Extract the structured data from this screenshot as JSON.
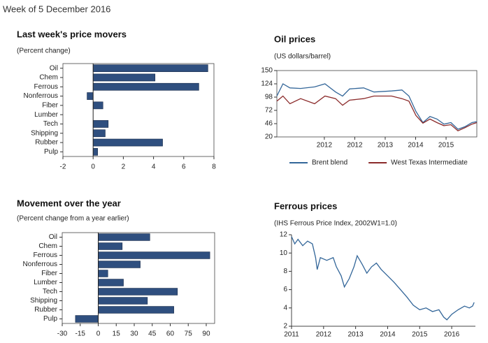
{
  "header": "Week of 5 December 2016",
  "chart_data": [
    {
      "type": "barh",
      "title": "Last week's price movers",
      "subtitle": "(Percent change)",
      "categories": [
        "Oil",
        "Chem",
        "Ferrous",
        "Nonferrous",
        "Fiber",
        "Lumber",
        "Tech",
        "Shipping",
        "Rubber",
        "Pulp"
      ],
      "values": [
        7.6,
        4.1,
        7.0,
        -0.4,
        0.65,
        0,
        1.0,
        0.8,
        4.6,
        0.3
      ],
      "color": "#2f4f7f",
      "xlim": [
        -2,
        8
      ],
      "xticks": [
        -2,
        0,
        2,
        4,
        6,
        8
      ],
      "frame": true
    },
    {
      "type": "barh",
      "title": "Movement over the year",
      "subtitle": "(Percent change from a year earlier)",
      "categories": [
        "Oil",
        "Chem",
        "Ferrous",
        "Nonferrous",
        "Fiber",
        "Lumber",
        "Tech",
        "Shipping",
        "Rubber",
        "Pulp"
      ],
      "values": [
        43,
        20,
        93,
        35,
        8,
        21,
        66,
        41,
        63,
        -19
      ],
      "color": "#2f4f7f",
      "xlim": [
        -30,
        97
      ],
      "xticks": [
        -30,
        -15,
        0,
        15,
        30,
        45,
        60,
        75,
        90
      ],
      "frame": true
    },
    {
      "type": "line",
      "title": "Oil prices",
      "subtitle": "(US dollars/barrel)",
      "x": [
        2010.44,
        2010.64,
        2010.87,
        2011.22,
        2011.68,
        2012.02,
        2012.37,
        2012.6,
        2012.83,
        2013.29,
        2013.63,
        2014.21,
        2014.55,
        2014.78,
        2015.01,
        2015.24,
        2015.47,
        2015.7,
        2015.93,
        2016.16,
        2016.39,
        2016.62,
        2016.85,
        2017.01
      ],
      "series": [
        {
          "name": "Brent blend",
          "color": "#336699",
          "values": [
            100,
            124,
            116,
            115,
            118,
            124,
            108,
            100,
            114,
            116,
            108,
            110,
            112,
            100,
            70,
            48,
            60,
            55,
            45,
            48,
            35,
            40,
            48,
            50
          ]
        },
        {
          "name": "West Texas Intermediate",
          "color": "#8b2a2a",
          "values": [
            90,
            100,
            85,
            95,
            85,
            100,
            95,
            82,
            92,
            95,
            100,
            100,
            95,
            90,
            62,
            47,
            55,
            48,
            42,
            44,
            32,
            38,
            45,
            48
          ]
        }
      ],
      "xlim": [
        2010.44,
        2017.01
      ],
      "xticks": [
        2012,
        {
          "value": 2013,
          "label": "2012"
        },
        {
          "value": 2014,
          "label": "2013"
        },
        {
          "value": 2015,
          "label": "2014"
        },
        {
          "value": 2016,
          "label": "2015"
        }
      ],
      "ylim": [
        20,
        150
      ],
      "yticks": [
        20,
        46,
        72,
        98,
        124,
        150
      ],
      "legend": "bottom",
      "frame": true
    },
    {
      "type": "line",
      "title": "Ferrous prices",
      "subtitle": "(IHS Ferrous Price Index, 2002W1=1.0)",
      "x": [
        2011.0,
        2011.1,
        2011.2,
        2011.35,
        2011.5,
        2011.65,
        2011.75,
        2011.8,
        2011.9,
        2012.1,
        2012.3,
        2012.4,
        2012.55,
        2012.65,
        2012.8,
        2012.95,
        2013.05,
        2013.2,
        2013.35,
        2013.5,
        2013.65,
        2013.8,
        2014.0,
        2014.2,
        2014.4,
        2014.6,
        2014.8,
        2015.0,
        2015.2,
        2015.4,
        2015.6,
        2015.75,
        2015.85,
        2016.0,
        2016.2,
        2016.4,
        2016.55,
        2016.65,
        2016.7
      ],
      "series": [
        {
          "color": "#336699",
          "values": [
            11.8,
            11.0,
            11.5,
            10.8,
            11.3,
            11.0,
            9.5,
            8.2,
            9.5,
            9.2,
            9.5,
            8.5,
            7.5,
            6.3,
            7.2,
            8.5,
            9.7,
            8.8,
            7.8,
            8.5,
            8.9,
            8.2,
            7.5,
            6.8,
            6.0,
            5.2,
            4.3,
            3.8,
            4.0,
            3.6,
            3.8,
            3.0,
            2.7,
            3.3,
            3.8,
            4.2,
            4.0,
            4.2,
            4.6
          ]
        }
      ],
      "xlim": [
        2011,
        2016.74
      ],
      "xticks": [
        2011,
        2012,
        2013,
        2014,
        2015,
        2016
      ],
      "ylim": [
        2,
        12
      ],
      "yticks": [
        2,
        4,
        6,
        8,
        10,
        12
      ],
      "frame": false
    }
  ]
}
